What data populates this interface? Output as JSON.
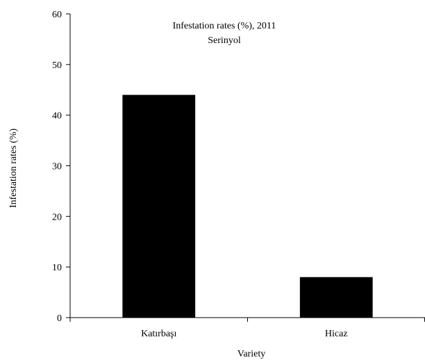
{
  "chart_data": {
    "type": "bar",
    "title": "Infestation rates (%), 2011",
    "subtitle": "Serinyol",
    "xlabel": "Variety",
    "ylabel": "Infestation rates (%)",
    "categories": [
      "Katırbaşı",
      "Hicaz"
    ],
    "values": [
      44,
      8
    ],
    "ylim": [
      0,
      60
    ],
    "yticks": [
      0,
      10,
      20,
      30,
      40,
      50,
      60
    ],
    "grid": false,
    "bar_color": "#000000",
    "axis_color": "#000000"
  }
}
